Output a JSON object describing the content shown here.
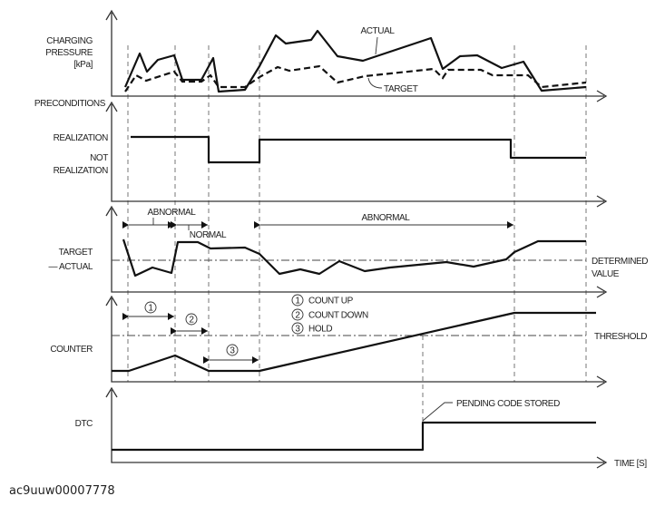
{
  "panels": {
    "charging_pressure": {
      "label_lines": [
        "CHARGING",
        "PRESSURE",
        "[kPa]"
      ],
      "actual": "ACTUAL",
      "target": "TARGET"
    },
    "preconditions": {
      "label": "PRECONDITIONS",
      "realization": "REALIZATION",
      "not_realization_lines": [
        "NOT",
        "REALIZATION"
      ]
    },
    "target_actual": {
      "label_lines": [
        "TARGET",
        "— ACTUAL"
      ],
      "abnormal_1": "ABNORMAL",
      "normal": "NORMAL",
      "abnormal_2": "ABNORMAL",
      "determined_lines": [
        "DETERMINED",
        "VALUE"
      ]
    },
    "counter": {
      "label": "COUNTER",
      "threshold": "THRESHOLD",
      "marks": [
        "1",
        "2",
        "3"
      ],
      "legend": [
        {
          "num": "1",
          "text": "COUNT UP"
        },
        {
          "num": "2",
          "text": "COUNT DOWN"
        },
        {
          "num": "3",
          "text": "HOLD"
        }
      ]
    },
    "dtc": {
      "label": "DTC",
      "pending": "PENDING CODE STORED",
      "x_axis": "TIME [S]"
    }
  },
  "footer": {
    "image_id_text": "ac9uuw00007778"
  }
}
